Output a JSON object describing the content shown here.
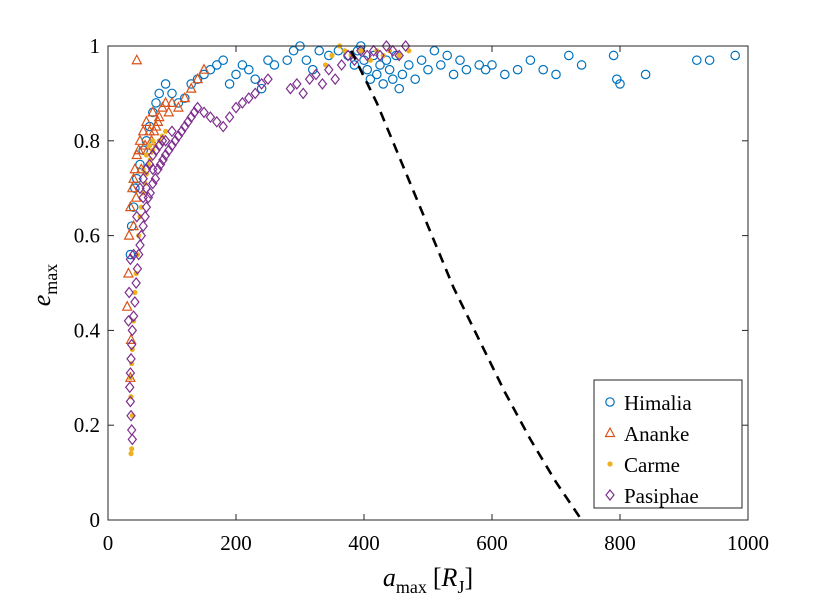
{
  "chart_data": {
    "type": "scatter",
    "title": "",
    "xlabel": {
      "main": "a",
      "sub": "max",
      "unit_open": "[",
      "unit_main": "R",
      "unit_sub": "J",
      "unit_close": "]"
    },
    "ylabel": {
      "main": "e",
      "sub": "max"
    },
    "xlim": [
      0,
      1000
    ],
    "ylim": [
      0,
      1
    ],
    "xticks": [
      0,
      200,
      400,
      600,
      800,
      1000
    ],
    "xtick_labels": [
      "0",
      "200",
      "400",
      "600",
      "800",
      "1000"
    ],
    "yticks": [
      0,
      0.2,
      0.4,
      0.6,
      0.8,
      1
    ],
    "ytick_labels": [
      "0",
      "0.2",
      "0.4",
      "0.6",
      "0.8",
      "1"
    ],
    "grid": false,
    "legend_position": "bottom-right",
    "series": [
      {
        "name": "Himalia",
        "marker": "circle",
        "color": "#0072BD",
        "points": [
          [
            35,
            0.56
          ],
          [
            37,
            0.62
          ],
          [
            40,
            0.66
          ],
          [
            42,
            0.7
          ],
          [
            45,
            0.72
          ],
          [
            50,
            0.75
          ],
          [
            55,
            0.78
          ],
          [
            60,
            0.8
          ],
          [
            65,
            0.83
          ],
          [
            70,
            0.86
          ],
          [
            75,
            0.88
          ],
          [
            80,
            0.9
          ],
          [
            90,
            0.92
          ],
          [
            100,
            0.9
          ],
          [
            110,
            0.88
          ],
          [
            120,
            0.89
          ],
          [
            130,
            0.92
          ],
          [
            140,
            0.93
          ],
          [
            150,
            0.94
          ],
          [
            160,
            0.95
          ],
          [
            170,
            0.96
          ],
          [
            180,
            0.97
          ],
          [
            190,
            0.92
          ],
          [
            200,
            0.94
          ],
          [
            210,
            0.96
          ],
          [
            220,
            0.95
          ],
          [
            230,
            0.93
          ],
          [
            240,
            0.91
          ],
          [
            250,
            0.97
          ],
          [
            260,
            0.96
          ],
          [
            280,
            0.97
          ],
          [
            290,
            0.99
          ],
          [
            300,
            1.0
          ],
          [
            310,
            0.97
          ],
          [
            320,
            0.95
          ],
          [
            330,
            0.99
          ],
          [
            345,
            0.98
          ],
          [
            360,
            0.99
          ],
          [
            375,
            0.98
          ],
          [
            385,
            0.96
          ],
          [
            390,
            0.99
          ],
          [
            395,
            1.0
          ],
          [
            400,
            0.97
          ],
          [
            405,
            0.95
          ],
          [
            410,
            0.93
          ],
          [
            415,
            0.98
          ],
          [
            420,
            0.94
          ],
          [
            425,
            0.96
          ],
          [
            430,
            0.92
          ],
          [
            435,
            0.97
          ],
          [
            440,
            0.95
          ],
          [
            445,
            0.93
          ],
          [
            450,
            0.98
          ],
          [
            455,
            0.91
          ],
          [
            460,
            0.94
          ],
          [
            470,
            0.96
          ],
          [
            480,
            0.93
          ],
          [
            490,
            0.97
          ],
          [
            500,
            0.95
          ],
          [
            510,
            0.99
          ],
          [
            520,
            0.96
          ],
          [
            530,
            0.98
          ],
          [
            540,
            0.94
          ],
          [
            550,
            0.97
          ],
          [
            560,
            0.95
          ],
          [
            580,
            0.96
          ],
          [
            590,
            0.95
          ],
          [
            600,
            0.96
          ],
          [
            620,
            0.94
          ],
          [
            640,
            0.95
          ],
          [
            660,
            0.97
          ],
          [
            680,
            0.95
          ],
          [
            700,
            0.94
          ],
          [
            720,
            0.98
          ],
          [
            740,
            0.96
          ],
          [
            790,
            0.98
          ],
          [
            795,
            0.93
          ],
          [
            800,
            0.92
          ],
          [
            840,
            0.94
          ],
          [
            920,
            0.97
          ],
          [
            940,
            0.97
          ],
          [
            980,
            0.98
          ]
        ]
      },
      {
        "name": "Ananke",
        "marker": "triangle",
        "color": "#D95319",
        "points": [
          [
            45,
            0.97
          ],
          [
            30,
            0.45
          ],
          [
            32,
            0.52
          ],
          [
            33,
            0.6
          ],
          [
            35,
            0.66
          ],
          [
            38,
            0.7
          ],
          [
            40,
            0.72
          ],
          [
            42,
            0.74
          ],
          [
            45,
            0.77
          ],
          [
            48,
            0.78
          ],
          [
            50,
            0.8
          ],
          [
            55,
            0.82
          ],
          [
            60,
            0.84
          ],
          [
            65,
            0.82
          ],
          [
            70,
            0.86
          ],
          [
            75,
            0.83
          ],
          [
            80,
            0.85
          ],
          [
            85,
            0.87
          ],
          [
            90,
            0.88
          ],
          [
            95,
            0.86
          ],
          [
            100,
            0.88
          ],
          [
            110,
            0.87
          ],
          [
            120,
            0.89
          ],
          [
            130,
            0.91
          ],
          [
            140,
            0.93
          ],
          [
            150,
            0.95
          ],
          [
            35,
            0.3
          ],
          [
            36,
            0.38
          ],
          [
            40,
            0.62
          ],
          [
            44,
            0.68
          ],
          [
            52,
            0.74
          ],
          [
            58,
            0.79
          ],
          [
            62,
            0.78
          ],
          [
            68,
            0.8
          ],
          [
            72,
            0.82
          ],
          [
            78,
            0.84
          ]
        ]
      },
      {
        "name": "Carme",
        "marker": "dot",
        "color": "#EDB120",
        "points": [
          [
            36,
            0.14
          ],
          [
            37,
            0.15
          ],
          [
            38,
            0.22
          ],
          [
            36,
            0.26
          ],
          [
            35,
            0.3
          ],
          [
            37,
            0.33
          ],
          [
            38,
            0.36
          ],
          [
            40,
            0.42
          ],
          [
            42,
            0.48
          ],
          [
            44,
            0.52
          ],
          [
            46,
            0.56
          ],
          [
            48,
            0.6
          ],
          [
            50,
            0.64
          ],
          [
            52,
            0.66
          ],
          [
            55,
            0.69
          ],
          [
            58,
            0.71
          ],
          [
            60,
            0.73
          ],
          [
            63,
            0.75
          ],
          [
            66,
            0.76
          ],
          [
            70,
            0.78
          ],
          [
            74,
            0.79
          ],
          [
            80,
            0.8
          ],
          [
            85,
            0.81
          ],
          [
            90,
            0.82
          ],
          [
            55,
            0.74
          ],
          [
            60,
            0.77
          ],
          [
            65,
            0.79
          ],
          [
            70,
            0.8
          ],
          [
            362,
            1.0
          ],
          [
            370,
            0.99
          ],
          [
            380,
            0.98
          ],
          [
            395,
            0.99
          ],
          [
            410,
            0.97
          ],
          [
            420,
            0.99
          ],
          [
            430,
            0.98
          ],
          [
            440,
            0.99
          ],
          [
            455,
            0.98
          ],
          [
            470,
            0.99
          ],
          [
            340,
            0.96
          ],
          [
            350,
            0.98
          ]
        ]
      },
      {
        "name": "Pasiphae",
        "marker": "diamond",
        "color": "#7E2F8E",
        "points": [
          [
            38,
            0.17
          ],
          [
            37,
            0.19
          ],
          [
            36,
            0.22
          ],
          [
            35,
            0.25
          ],
          [
            34,
            0.28
          ],
          [
            35,
            0.31
          ],
          [
            36,
            0.34
          ],
          [
            37,
            0.37
          ],
          [
            38,
            0.4
          ],
          [
            40,
            0.43
          ],
          [
            42,
            0.46
          ],
          [
            44,
            0.5
          ],
          [
            46,
            0.53
          ],
          [
            48,
            0.56
          ],
          [
            50,
            0.58
          ],
          [
            52,
            0.6
          ],
          [
            55,
            0.62
          ],
          [
            58,
            0.64
          ],
          [
            60,
            0.66
          ],
          [
            63,
            0.68
          ],
          [
            66,
            0.69
          ],
          [
            70,
            0.71
          ],
          [
            74,
            0.72
          ],
          [
            78,
            0.74
          ],
          [
            82,
            0.75
          ],
          [
            86,
            0.76
          ],
          [
            90,
            0.77
          ],
          [
            95,
            0.78
          ],
          [
            100,
            0.79
          ],
          [
            105,
            0.8
          ],
          [
            110,
            0.81
          ],
          [
            115,
            0.82
          ],
          [
            120,
            0.83
          ],
          [
            125,
            0.84
          ],
          [
            130,
            0.85
          ],
          [
            135,
            0.86
          ],
          [
            140,
            0.87
          ],
          [
            150,
            0.86
          ],
          [
            160,
            0.85
          ],
          [
            170,
            0.84
          ],
          [
            180,
            0.83
          ],
          [
            190,
            0.85
          ],
          [
            200,
            0.87
          ],
          [
            210,
            0.88
          ],
          [
            220,
            0.89
          ],
          [
            230,
            0.9
          ],
          [
            240,
            0.92
          ],
          [
            250,
            0.93
          ],
          [
            285,
            0.91
          ],
          [
            295,
            0.92
          ],
          [
            305,
            0.9
          ],
          [
            315,
            0.93
          ],
          [
            325,
            0.94
          ],
          [
            335,
            0.92
          ],
          [
            345,
            0.95
          ],
          [
            355,
            0.93
          ],
          [
            365,
            0.96
          ],
          [
            375,
            0.98
          ],
          [
            385,
            0.97
          ],
          [
            395,
            0.99
          ],
          [
            405,
            0.98
          ],
          [
            415,
            0.99
          ],
          [
            425,
            0.98
          ],
          [
            435,
            1.0
          ],
          [
            445,
            0.99
          ],
          [
            455,
            0.98
          ],
          [
            465,
            1.0
          ],
          [
            40,
            0.56
          ],
          [
            45,
            0.64
          ],
          [
            50,
            0.7
          ],
          [
            55,
            0.72
          ],
          [
            60,
            0.74
          ],
          [
            65,
            0.75
          ],
          [
            70,
            0.77
          ],
          [
            75,
            0.78
          ],
          [
            80,
            0.79
          ],
          [
            85,
            0.8
          ],
          [
            32,
            0.42
          ],
          [
            33,
            0.48
          ],
          [
            35,
            0.55
          ],
          [
            55,
            0.68
          ],
          [
            60,
            0.7
          ],
          [
            70,
            0.74
          ],
          [
            90,
            0.8
          ],
          [
            100,
            0.82
          ]
        ]
      }
    ],
    "boundary_curve": {
      "style": "dashed",
      "color": "#000000",
      "points": [
        [
          380,
          0.99
        ],
        [
          420,
          0.88
        ],
        [
          460,
          0.75
        ],
        [
          500,
          0.62
        ],
        [
          540,
          0.49
        ],
        [
          580,
          0.38
        ],
        [
          620,
          0.27
        ],
        [
          660,
          0.17
        ],
        [
          700,
          0.08
        ],
        [
          740,
          0.0
        ]
      ]
    }
  }
}
